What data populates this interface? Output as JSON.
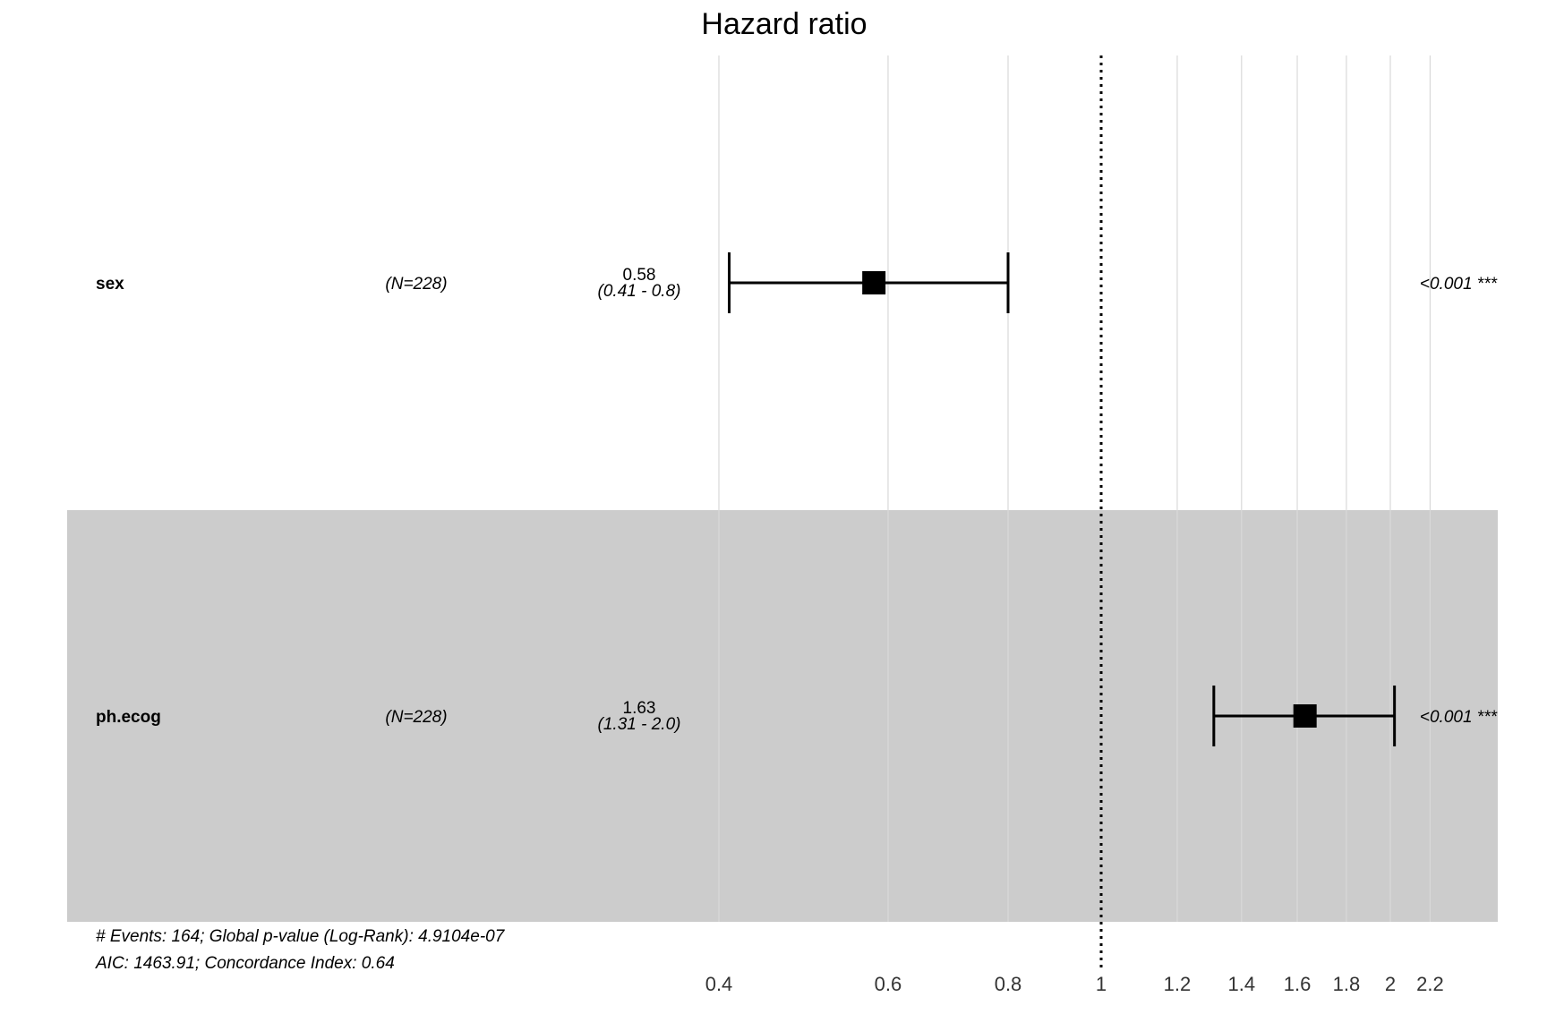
{
  "chart_data": {
    "type": "forest",
    "title": "Hazard ratio",
    "x_scale": "log",
    "xlim": [
      0.4,
      2.35
    ],
    "reference_line": 1,
    "ticks": [
      {
        "value": 0.4,
        "label": "0.4"
      },
      {
        "value": 0.6,
        "label": "0.6"
      },
      {
        "value": 0.8,
        "label": "0.8"
      },
      {
        "value": 1,
        "label": "1"
      },
      {
        "value": 1.2,
        "label": "1.2"
      },
      {
        "value": 1.4,
        "label": "1.4"
      },
      {
        "value": 1.6,
        "label": "1.6"
      },
      {
        "value": 1.8,
        "label": "1.8"
      },
      {
        "value": 2,
        "label": "2"
      },
      {
        "value": 2.2,
        "label": "2.2"
      }
    ],
    "rows": [
      {
        "variable": "sex",
        "n": "(N=228)",
        "estimate": 0.58,
        "estimate_label": "0.58",
        "ci_label": "(0.41 - 0.8)",
        "lower": 0.41,
        "upper": 0.8,
        "p_label": "<0.001 ***",
        "shaded": false
      },
      {
        "variable": "ph.ecog",
        "n": "(N=228)",
        "estimate": 1.63,
        "estimate_label": "1.63",
        "ci_label": "(1.31 - 2.0)",
        "lower": 1.31,
        "upper": 2.02,
        "p_label": "<0.001 ***",
        "shaded": true
      }
    ],
    "footnotes": [
      "# Events: 164; Global p-value (Log-Rank): 4.9104e-07",
      "AIC: 1463.91; Concordance Index: 0.64"
    ],
    "colors": {
      "shade": "#cccccc",
      "grid": "#d9d9d9",
      "marker": "#000000",
      "reference": "#000000"
    }
  }
}
